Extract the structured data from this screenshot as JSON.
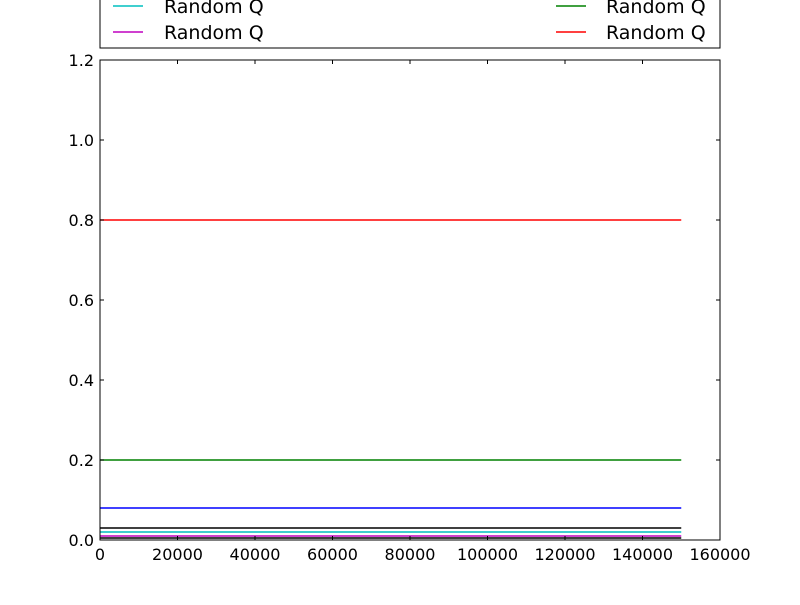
{
  "chart_data": {
    "type": "line",
    "title": "",
    "xlabel": "",
    "ylabel": "",
    "xlim": [
      0,
      160000
    ],
    "ylim": [
      0.0,
      1.2
    ],
    "x_ticks": [
      0,
      20000,
      40000,
      60000,
      80000,
      100000,
      120000,
      140000,
      160000
    ],
    "x_tick_labels": [
      "0",
      "20000",
      "40000",
      "60000",
      "80000",
      "100000",
      "120000",
      "140000",
      "160000"
    ],
    "y_ticks": [
      0.0,
      0.2,
      0.4,
      0.6,
      0.8,
      1.0,
      1.2
    ],
    "y_tick_labels": [
      "0.0",
      "0.2",
      "0.4",
      "0.6",
      "0.8",
      "1.0",
      "1.2"
    ],
    "grid": false,
    "legend_position": "top, above plot (clipped)",
    "x": [
      0,
      150000
    ],
    "series": [
      {
        "name": "Random Q",
        "color": "#bf00bf",
        "values": [
          0.01,
          0.01
        ]
      },
      {
        "name": "Random Q",
        "color": "#ff0000",
        "values": [
          0.8,
          0.8
        ]
      },
      {
        "name": "",
        "color": "#00bfbf",
        "values": [
          0.02,
          0.02
        ]
      },
      {
        "name": "Random Q",
        "color": "#008000",
        "values": [
          0.2,
          0.2
        ]
      },
      {
        "name": "",
        "color": "#0000ff",
        "values": [
          0.08,
          0.08
        ]
      },
      {
        "name": "",
        "color": "#000000",
        "values": [
          0.03,
          0.03
        ]
      },
      {
        "name": "",
        "color": "#000000",
        "values": [
          0.005,
          0.005
        ]
      }
    ],
    "legend": [
      {
        "label": "Random Q",
        "color": "#00bfbf",
        "partial": true
      },
      {
        "label": "Random Q",
        "color": "#008000",
        "partial": true
      },
      {
        "label": "Random Q",
        "color": "#bf00bf"
      },
      {
        "label": "Random Q",
        "color": "#ff0000"
      }
    ]
  }
}
